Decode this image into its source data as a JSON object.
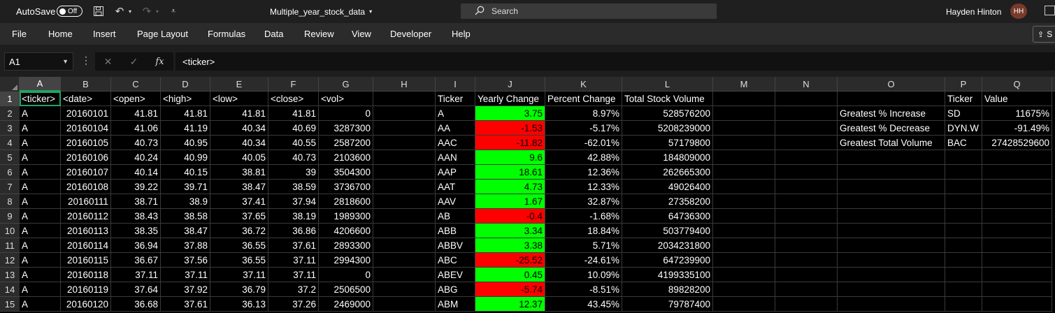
{
  "titlebar": {
    "autosave_label": "AutoSave",
    "toggle_state": "Off",
    "doc_title": "Multiple_year_stock_data",
    "search_placeholder": "Search",
    "user_name": "Hayden Hinton",
    "avatar_initials": "HH"
  },
  "ribbon": {
    "tabs": [
      "File",
      "Home",
      "Insert",
      "Page Layout",
      "Formulas",
      "Data",
      "Review",
      "View",
      "Developer",
      "Help"
    ],
    "share_label": "S"
  },
  "formula_bar": {
    "name_box": "A1",
    "fx_label": "fx",
    "formula": "<ticker>"
  },
  "grid": {
    "columns": [
      "A",
      "B",
      "C",
      "D",
      "E",
      "F",
      "G",
      "H",
      "I",
      "J",
      "K",
      "L",
      "M",
      "N",
      "O",
      "P",
      "Q"
    ],
    "selected_column": "A",
    "rows": [
      {
        "n": "1",
        "cells": [
          "<ticker>",
          "<date>",
          "<open>",
          "<high>",
          "<low>",
          "<close>",
          "<vol>",
          "",
          "Ticker",
          "Yearly Change",
          "Percent Change",
          "Total Stock Volume",
          "",
          "",
          "",
          "Ticker",
          "Value"
        ]
      },
      {
        "n": "2",
        "cells": [
          "A",
          "20160101",
          "41.81",
          "41.81",
          "41.81",
          "41.81",
          "0",
          "",
          "A",
          "3.75",
          "8.97%",
          "528576200",
          "",
          "",
          "Greatest % Increase",
          "SD",
          "11675%"
        ]
      },
      {
        "n": "3",
        "cells": [
          "A",
          "20160104",
          "41.06",
          "41.19",
          "40.34",
          "40.69",
          "3287300",
          "",
          "AA",
          "-1.53",
          "-5.17%",
          "5208239000",
          "",
          "",
          "Greatest % Decrease",
          "DYN.W",
          "-91.49%"
        ]
      },
      {
        "n": "4",
        "cells": [
          "A",
          "20160105",
          "40.73",
          "40.95",
          "40.34",
          "40.55",
          "2587200",
          "",
          "AAC",
          "-11.82",
          "-62.01%",
          "57179800",
          "",
          "",
          "Greatest Total Volume",
          "BAC",
          "27428529600"
        ]
      },
      {
        "n": "5",
        "cells": [
          "A",
          "20160106",
          "40.24",
          "40.99",
          "40.05",
          "40.73",
          "2103600",
          "",
          "AAN",
          "9.6",
          "42.88%",
          "184809000",
          "",
          "",
          "",
          "",
          ""
        ]
      },
      {
        "n": "6",
        "cells": [
          "A",
          "20160107",
          "40.14",
          "40.15",
          "38.81",
          "39",
          "3504300",
          "",
          "AAP",
          "18.61",
          "12.36%",
          "262665300",
          "",
          "",
          "",
          "",
          ""
        ]
      },
      {
        "n": "7",
        "cells": [
          "A",
          "20160108",
          "39.22",
          "39.71",
          "38.47",
          "38.59",
          "3736700",
          "",
          "AAT",
          "4.73",
          "12.33%",
          "49026400",
          "",
          "",
          "",
          "",
          ""
        ]
      },
      {
        "n": "8",
        "cells": [
          "A",
          "20160111",
          "38.71",
          "38.9",
          "37.41",
          "37.94",
          "2818600",
          "",
          "AAV",
          "1.67",
          "32.87%",
          "27358200",
          "",
          "",
          "",
          "",
          ""
        ]
      },
      {
        "n": "9",
        "cells": [
          "A",
          "20160112",
          "38.43",
          "38.58",
          "37.65",
          "38.19",
          "1989300",
          "",
          "AB",
          "-0.4",
          "-1.68%",
          "64736300",
          "",
          "",
          "",
          "",
          ""
        ]
      },
      {
        "n": "10",
        "cells": [
          "A",
          "20160113",
          "38.35",
          "38.47",
          "36.72",
          "36.86",
          "4206600",
          "",
          "ABB",
          "3.34",
          "18.84%",
          "503779400",
          "",
          "",
          "",
          "",
          ""
        ]
      },
      {
        "n": "11",
        "cells": [
          "A",
          "20160114",
          "36.94",
          "37.88",
          "36.55",
          "37.61",
          "2893300",
          "",
          "ABBV",
          "3.38",
          "5.71%",
          "2034231800",
          "",
          "",
          "",
          "",
          ""
        ]
      },
      {
        "n": "12",
        "cells": [
          "A",
          "20160115",
          "36.67",
          "37.56",
          "36.55",
          "37.11",
          "2994300",
          "",
          "ABC",
          "-25.52",
          "-24.61%",
          "647239900",
          "",
          "",
          "",
          "",
          ""
        ]
      },
      {
        "n": "13",
        "cells": [
          "A",
          "20160118",
          "37.11",
          "37.11",
          "37.11",
          "37.11",
          "0",
          "",
          "ABEV",
          "0.45",
          "10.09%",
          "4199335100",
          "",
          "",
          "",
          "",
          ""
        ]
      },
      {
        "n": "14",
        "cells": [
          "A",
          "20160119",
          "37.64",
          "37.92",
          "36.79",
          "37.2",
          "2506500",
          "",
          "ABG",
          "-5.74",
          "-8.51%",
          "89828200",
          "",
          "",
          "",
          "",
          ""
        ]
      },
      {
        "n": "15",
        "cells": [
          "A",
          "20160120",
          "36.68",
          "37.61",
          "36.13",
          "37.26",
          "2469000",
          "",
          "ABM",
          "12.37",
          "43.45%",
          "79787400",
          "",
          "",
          "",
          "",
          ""
        ]
      }
    ],
    "positive_color": "#00ff00",
    "negative_color": "#ff0000"
  }
}
